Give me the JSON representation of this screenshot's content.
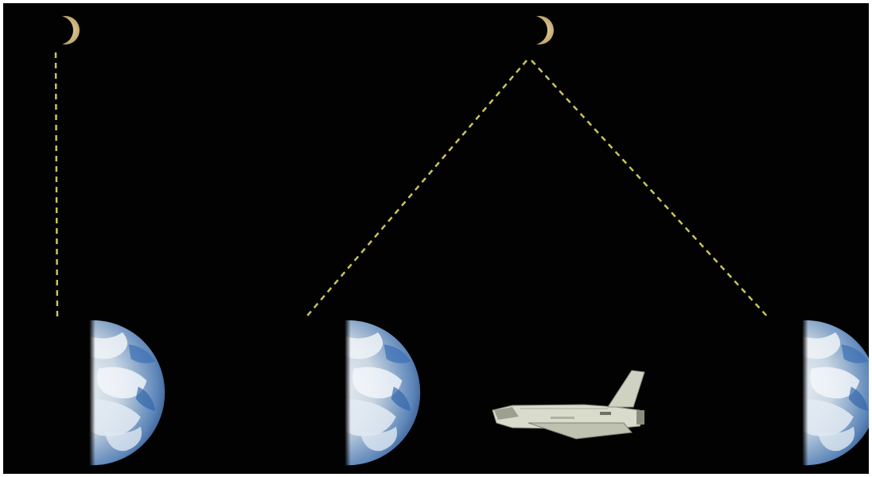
{
  "scene": {
    "background_color": "#020202",
    "dash_color": "#c9c45a",
    "earth_colors": {
      "ocean": "#2e63a8",
      "cloud": "#e8eef4",
      "shadow": "#05080f"
    },
    "moon_color": "#d8c089",
    "shuttle_color": "#d9dccd",
    "objects": [
      {
        "name": "moon-left",
        "type": "crescent-moon"
      },
      {
        "name": "moon-center",
        "type": "crescent-moon"
      },
      {
        "name": "earth-left",
        "type": "half-lit-earth"
      },
      {
        "name": "earth-center",
        "type": "half-lit-earth"
      },
      {
        "name": "earth-right",
        "type": "half-lit-earth"
      },
      {
        "name": "space-shuttle",
        "type": "space-shuttle"
      },
      {
        "name": "sightline-vertical",
        "type": "dashed-line"
      },
      {
        "name": "sightline-center-left",
        "type": "dashed-line"
      },
      {
        "name": "sightline-center-right",
        "type": "dashed-line"
      }
    ]
  }
}
